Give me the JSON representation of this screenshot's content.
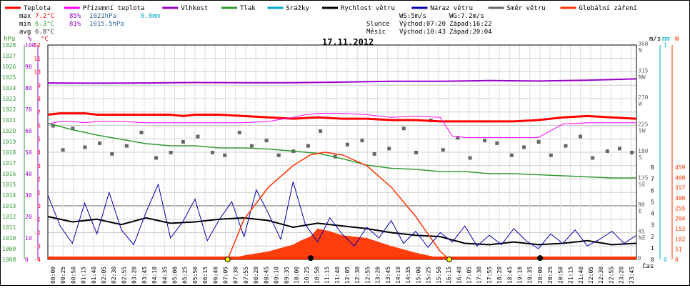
{
  "legend": [
    {
      "label": "Teplota",
      "color": "#ff0000"
    },
    {
      "label": "Přízemní teplota",
      "color": "#ff00ff"
    },
    {
      "label": "Vlhkost",
      "color": "#9900cc"
    },
    {
      "label": "Tlak",
      "color": "#339933"
    },
    {
      "label": "Srážky",
      "color": "#00aacc"
    },
    {
      "label": "Rychlost větru",
      "color": "#000000"
    },
    {
      "label": "Náraz větru",
      "color": "#0000aa"
    },
    {
      "label": "Směr větru",
      "color": "#666666"
    },
    {
      "label": "Globální záření",
      "color": "#ff3300"
    }
  ],
  "stats": {
    "max": {
      "label": "max",
      "temp": "7.2°C",
      "hum": "85%",
      "press": "1021hPa",
      "rain": "0.0mm"
    },
    "min": {
      "label": "min",
      "temp": "6.3°C",
      "hum": "81%",
      "press": "1015.5hPa"
    },
    "avg": {
      "label": "avg",
      "temp": "6.8°C"
    }
  },
  "wind_info": {
    "ws": "WS:5m/s",
    "wg": "WG:7.2m/s"
  },
  "sun": {
    "label": "Slunce",
    "rise": "Východ:07:20",
    "set": "Západ:16:22"
  },
  "moon": {
    "label": "Měsíc",
    "rise": "Východ:10:43",
    "set": "Západ:20:04"
  },
  "date": "17.11.2012",
  "axis_units": {
    "hpa": "hPa",
    "pct": "%",
    "temp": "°C",
    "ms": "m/s",
    "mm": "mm",
    "w": "W",
    "time": "čas"
  },
  "chart_data": {
    "type": "line",
    "title": "17.11.2012",
    "y_temp": {
      "ylim": [
        -4,
        12
      ],
      "ticks": [
        -4,
        -3,
        -2,
        -1,
        0,
        1,
        2,
        3,
        4,
        5,
        6,
        7,
        8,
        9,
        10,
        11,
        12
      ]
    },
    "y_pct": {
      "ylim": [
        0,
        100
      ],
      "ticks": [
        0,
        10,
        20,
        30,
        40,
        50,
        60,
        70,
        80,
        90,
        100
      ]
    },
    "y_hpa": {
      "ylim": [
        1008,
        1028
      ],
      "ticks": [
        1008,
        1009,
        1010,
        1011,
        1012,
        1013,
        1014,
        1015,
        1016,
        1017,
        1018,
        1019,
        1020,
        1021,
        1022,
        1023,
        1024,
        1025,
        1026,
        1027,
        1028
      ]
    },
    "y_dir": {
      "ticks": [
        {
          "v": "0",
          "d": ""
        },
        {
          "v": "45",
          "d": "NE"
        },
        {
          "v": "90",
          "d": "E"
        },
        {
          "v": "135",
          "d": "SE"
        },
        {
          "v": "180",
          "d": "S"
        },
        {
          "v": "225",
          "d": "SW"
        },
        {
          "v": "270",
          "d": "W"
        },
        {
          "v": "315",
          "d": "NW"
        },
        {
          "v": "360",
          "d": "N"
        }
      ]
    },
    "y_ms": {
      "ticks": [
        "0",
        "1",
        "2",
        "3",
        "4",
        "5",
        "6",
        "7",
        "8"
      ]
    },
    "y_mm": {
      "ticks": [
        "0",
        "1"
      ]
    },
    "y_w": {
      "ticks": [
        "0",
        "51",
        "102",
        "153",
        "204",
        "255",
        "306",
        "357",
        "408",
        "459"
      ]
    },
    "x_ticks": [
      "00:00",
      "00:25",
      "00:50",
      "01:15",
      "01:40",
      "02:05",
      "02:30",
      "02:55",
      "03:20",
      "03:45",
      "04:10",
      "04:35",
      "05:00",
      "05:25",
      "05:50",
      "06:15",
      "06:40",
      "07:05",
      "07:30",
      "07:55",
      "08:20",
      "08:45",
      "09:10",
      "09:35",
      "10:00",
      "10:25",
      "10:50",
      "11:15",
      "11:40",
      "12:05",
      "12:30",
      "12:55",
      "13:20",
      "13:45",
      "14:10",
      "14:35",
      "15:00",
      "15:25",
      "15:50",
      "16:15",
      "16:40",
      "17:05",
      "17:30",
      "17:55",
      "18:20",
      "18:45",
      "19:10",
      "19:35",
      "20:00",
      "20:25",
      "20:50",
      "21:15",
      "21:40",
      "22:05",
      "22:30",
      "22:55",
      "23:20",
      "23:45"
    ],
    "series": [
      {
        "name": "Teplota",
        "color": "#ff0000",
        "width": 3,
        "axis": "temp",
        "x": [
          0,
          0.5,
          1,
          1.5,
          2,
          3,
          4,
          5,
          5.5,
          6,
          7,
          8,
          9,
          10,
          11,
          12,
          13,
          14,
          15,
          16,
          17,
          18,
          19,
          20,
          21,
          22,
          23,
          24
        ],
        "y": [
          6.8,
          6.9,
          6.9,
          6.9,
          6.8,
          6.8,
          6.8,
          6.8,
          6.7,
          6.8,
          6.8,
          6.7,
          6.6,
          6.5,
          6.6,
          6.5,
          6.5,
          6.4,
          6.4,
          6.3,
          6.3,
          6.3,
          6.3,
          6.4,
          6.6,
          6.7,
          6.6,
          6.5
        ]
      },
      {
        "name": "Přízemní teplota",
        "color": "#ff00ff",
        "width": 1,
        "axis": "temp",
        "x": [
          0,
          0.5,
          1,
          1.5,
          2,
          3,
          4,
          5,
          6,
          7,
          8,
          9,
          10,
          10.5,
          11,
          12,
          13,
          14,
          15,
          16,
          16.5,
          17,
          18,
          19,
          20,
          21,
          22,
          23,
          24
        ],
        "y": [
          6.1,
          6.3,
          6.3,
          6.2,
          6.3,
          6.3,
          6.2,
          6.2,
          6.2,
          6.2,
          6.2,
          6.3,
          6.6,
          6.8,
          6.9,
          6.9,
          6.8,
          6.6,
          6.7,
          6.6,
          5.2,
          5.1,
          5.1,
          5.1,
          5.1,
          6.1,
          6.2,
          6.2,
          6.2
        ]
      },
      {
        "name": "Vlhkost",
        "color": "#9900cc",
        "width": 2,
        "axis": "pct",
        "x": [
          0,
          2,
          4,
          6,
          8,
          10,
          12,
          14,
          16,
          18,
          20,
          22,
          24
        ],
        "y": [
          82.3,
          82.2,
          82.3,
          82.5,
          82.4,
          82.4,
          82.7,
          83.1,
          83.1,
          83.4,
          83.2,
          83.6,
          84.2
        ]
      },
      {
        "name": "Tlak",
        "color": "#339933",
        "width": 1.5,
        "axis": "hpa",
        "x": [
          0,
          1,
          2,
          3,
          4,
          5,
          6,
          7,
          8,
          9,
          10,
          11,
          12,
          13,
          14,
          15,
          16,
          17,
          18,
          19,
          20,
          21,
          22,
          23,
          24
        ],
        "y": [
          1020.7,
          1020.1,
          1019.6,
          1019.2,
          1018.8,
          1018.6,
          1018.6,
          1018.4,
          1018.4,
          1018.3,
          1018.1,
          1017.9,
          1017.4,
          1016.8,
          1016.5,
          1016.4,
          1016.2,
          1016.2,
          1016.0,
          1016.0,
          1015.9,
          1015.8,
          1015.7,
          1015.6,
          1015.6
        ]
      },
      {
        "name": "Rychlost větru",
        "color": "#000000",
        "width": 2,
        "axis": "temp",
        "x": [
          0,
          1,
          2,
          3,
          4,
          5,
          6,
          7,
          8,
          9,
          10,
          11,
          12,
          13,
          14,
          15,
          16,
          17,
          18,
          19,
          20,
          21,
          22,
          23,
          24
        ],
        "y": [
          -0.8,
          -1.2,
          -1.0,
          -1.4,
          -0.9,
          -1.3,
          -1.2,
          -1.0,
          -0.9,
          -1.1,
          -1.6,
          -1.3,
          -1.5,
          -1.7,
          -2.0,
          -2.2,
          -2.3,
          -2.8,
          -2.9,
          -2.7,
          -2.9,
          -2.8,
          -2.6,
          -2.9,
          -2.8
        ]
      },
      {
        "name": "Náraz větru",
        "color": "#0000aa",
        "width": 1,
        "axis": "temp",
        "x": [
          0,
          0.5,
          1,
          1.5,
          2,
          2.5,
          3,
          3.5,
          4,
          4.5,
          5,
          5.5,
          6,
          6.5,
          7,
          7.5,
          8,
          8.5,
          9,
          9.5,
          10,
          10.5,
          11,
          11.5,
          12,
          12.5,
          13,
          13.5,
          14,
          14.5,
          15,
          15.5,
          16,
          16.5,
          17,
          17.5,
          18,
          18.5,
          19,
          19.5,
          20,
          20.5,
          21,
          21.5,
          22,
          22.5,
          23,
          23.5,
          24
        ],
        "y": [
          0.8,
          -1.5,
          -2.8,
          0.2,
          -2.1,
          1.0,
          -1.8,
          -2.9,
          -0.5,
          1.6,
          -2.4,
          -1.2,
          0.5,
          -2.6,
          -1.0,
          0.3,
          -2.3,
          1.2,
          -0.6,
          -2.5,
          1.8,
          -1.4,
          -2.7,
          -0.9,
          -2.1,
          -3.0,
          -1.6,
          -2.4,
          -1.1,
          -2.8,
          -1.9,
          -3.1,
          -2.0,
          -2.7,
          -1.5,
          -3.0,
          -2.2,
          -2.9,
          -1.7,
          -2.6,
          -3.2,
          -2.1,
          -2.8,
          -1.8,
          -3.0,
          -2.5,
          -1.9,
          -2.8,
          -2.2
        ]
      },
      {
        "name": "Globální záření",
        "color": "#ff3300",
        "width": 1.5,
        "axis": "temp",
        "x": [
          7.33,
          8,
          9,
          10,
          10.7,
          11.3,
          12,
          13,
          14,
          15,
          16,
          16.37
        ],
        "y": [
          -4,
          -1.0,
          1.4,
          3.0,
          3.8,
          4.0,
          3.8,
          3.0,
          1.4,
          -0.8,
          -3.4,
          -4
        ]
      }
    ],
    "area": {
      "name": "Globální záření",
      "color": "#ff3300",
      "axis": "temp",
      "x": [
        7.33,
        8,
        9,
        10,
        10.3,
        10.7,
        11,
        11.5,
        12,
        12.5,
        13,
        14,
        15,
        16,
        16.37
      ],
      "y": [
        -4,
        -3.7,
        -3.4,
        -2.9,
        -2.6,
        -2.3,
        -1.7,
        -1.9,
        -2.2,
        -2.3,
        -2.4,
        -3.0,
        -3.5,
        -3.9,
        -4
      ]
    },
    "points": {
      "name": "Směr větru",
      "color": "#666666",
      "axis": "temp",
      "x": [
        0.2,
        0.6,
        1.0,
        1.5,
        2.1,
        2.6,
        3.2,
        3.8,
        4.4,
        5.0,
        5.5,
        6.1,
        6.7,
        7.2,
        7.8,
        8.3,
        8.9,
        9.4,
        10.0,
        10.6,
        11.1,
        11.7,
        12.2,
        12.8,
        13.3,
        13.9,
        14.5,
        15.0,
        15.6,
        16.1,
        16.7,
        17.2,
        17.8,
        18.3,
        18.9,
        19.4,
        20.0,
        20.5,
        21.1,
        21.7,
        22.2,
        22.8,
        23.3,
        23.8
      ],
      "y": [
        6.0,
        4.2,
        5.8,
        4.4,
        4.7,
        3.9,
        4.5,
        5.5,
        3.6,
        4.0,
        4.8,
        5.2,
        4.0,
        3.8,
        5.5,
        4.5,
        4.9,
        3.8,
        4.1,
        4.5,
        5.6,
        3.7,
        4.6,
        4.9,
        3.9,
        4.3,
        5.8,
        4.0,
        6.4,
        4.2,
        5.1,
        3.6,
        4.9,
        4.7,
        3.8,
        4.4,
        4.8,
        3.8,
        4.5,
        5.2,
        3.6,
        4.1,
        4.3,
        4.0
      ]
    },
    "markers": [
      {
        "x": 7.33,
        "y": -4,
        "color": "#ffff00"
      },
      {
        "x": 16.37,
        "y": -4,
        "color": "#ffff00"
      },
      {
        "x": 10.72,
        "y": -3.9,
        "color": "#000000"
      },
      {
        "x": 20.07,
        "y": -3.9,
        "color": "#000000"
      }
    ]
  }
}
